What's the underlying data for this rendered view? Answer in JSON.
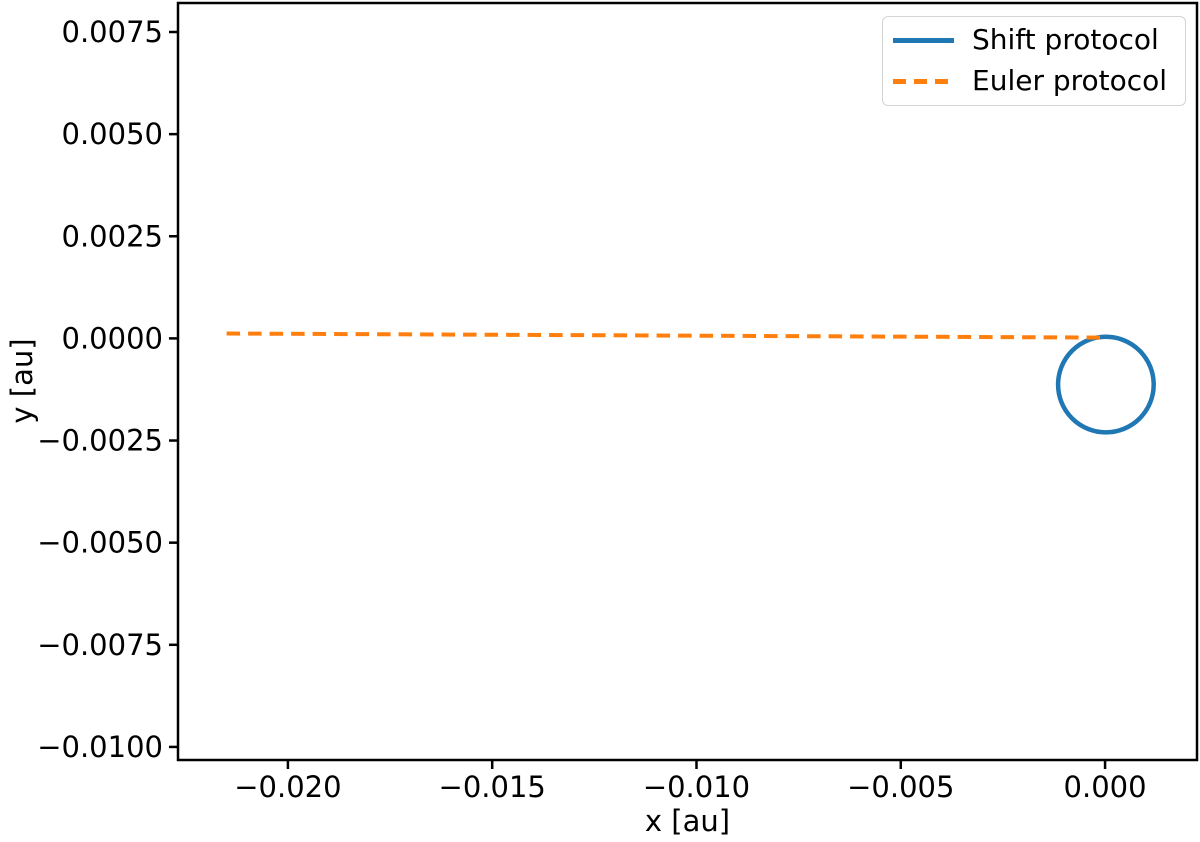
{
  "figure": {
    "background": "#ffffff",
    "axis_color": "#000000"
  },
  "axes": {
    "xlabel": "x [au]",
    "ylabel": "y [au]"
  },
  "legend": {
    "position": "upper right",
    "items": [
      {
        "label": "Shift protocol",
        "color": "#1f77b4",
        "style": "solid"
      },
      {
        "label": "Euler protocol",
        "color": "#ff7f0e",
        "style": "dashed"
      }
    ]
  },
  "chart_data": {
    "type": "line",
    "title": "",
    "xlabel": "x [au]",
    "ylabel": "y [au]",
    "xlim": [
      -0.02269,
      0.00225
    ],
    "ylim": [
      -0.01032,
      0.00821
    ],
    "grid": false,
    "legend_position": "upper right",
    "x_ticks": [
      -0.02,
      -0.015,
      -0.01,
      -0.005,
      0.0
    ],
    "x_tick_labels": [
      "−0.020",
      "−0.015",
      "−0.010",
      "−0.005",
      "0.000"
    ],
    "y_ticks": [
      0.0075,
      0.005,
      0.0025,
      0.0,
      -0.0025,
      -0.005,
      -0.0075,
      -0.01
    ],
    "y_tick_labels": [
      "0.0075",
      "0.0050",
      "0.0025",
      "0.0000",
      "−0.0025",
      "−0.0050",
      "−0.0075",
      "−0.0100"
    ],
    "series": [
      {
        "name": "Shift protocol",
        "color": "#1f77b4",
        "line_style": "solid",
        "line_width": 4.5,
        "shape": "circle",
        "center": [
          2e-05,
          -0.00113
        ],
        "radius": 0.00117,
        "description": "closed circular orbit passing through the origin (0, 0)"
      },
      {
        "name": "Euler protocol",
        "color": "#ff7f0e",
        "line_style": "dashed",
        "line_width": 4,
        "dash_pattern": [
          13.5,
          8
        ],
        "shape": "polyline",
        "points": [
          [
            -0.0215,
            0.00012
          ],
          [
            0.0,
            2e-05
          ]
        ],
        "description": "nearly horizontal dashed path drifting from x = −0.0215 back to the origin"
      }
    ]
  }
}
